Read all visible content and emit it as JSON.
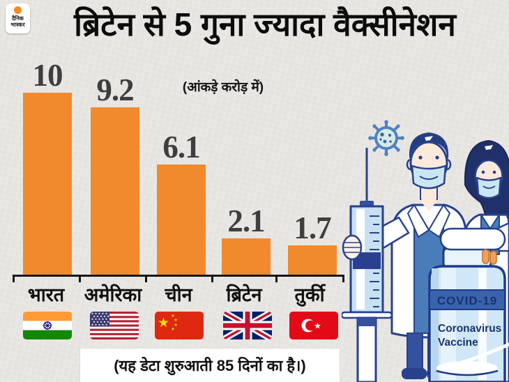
{
  "logo": {
    "line1": "दैनिक",
    "line2": "भास्कर"
  },
  "title": "ब्रिटेन से 5 गुना ज्यादा वैक्सीनेशन",
  "chart_data": {
    "type": "bar",
    "title": "ब्रिटेन से 5 गुना ज्यादा वैक्सीनेशन",
    "unit_note": "(आंकड़े करोड़ में)",
    "categories": [
      "भारत",
      "अमेरिका",
      "चीन",
      "ब्रिटेन",
      "तुर्की"
    ],
    "values": [
      10,
      9.2,
      6.1,
      2.1,
      1.7
    ],
    "value_labels": [
      "10",
      "9.2",
      "6.1",
      "2.1",
      "1.7"
    ],
    "ylim": [
      0,
      10
    ],
    "grid": false,
    "bar_color": "#F18A2D",
    "footnote": "(यह डेटा शुरुआती 85 दिनों का है।)",
    "flag_icons": [
      "india-flag",
      "usa-flag",
      "china-flag",
      "uk-flag",
      "turkey-flag"
    ]
  },
  "illustration": {
    "bottle_band": "COVID-19",
    "bottle_label_line1": "Coronavirus",
    "bottle_label_line2": "Vaccine"
  },
  "colors": {
    "background": "#e8e6e2",
    "bar": "#F18A2D",
    "value_text": "#3e3e3e",
    "axis": "#161616",
    "illustration_navy": "#27418c",
    "illustration_blue": "#4a7cb9",
    "logo_orange": "#F18A21"
  }
}
